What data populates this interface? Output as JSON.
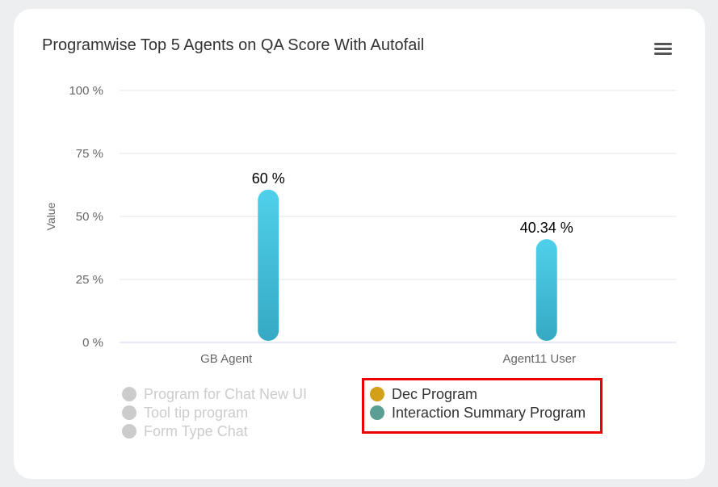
{
  "chart_data": {
    "type": "bar",
    "title": "Programwise Top 5 Agents on QA Score With Autofail",
    "ylabel": "Value",
    "ylim": [
      0,
      100
    ],
    "y_ticks": [
      {
        "value": 0,
        "label": "0 %"
      },
      {
        "value": 25,
        "label": "25 %"
      },
      {
        "value": 50,
        "label": "50 %"
      },
      {
        "value": 75,
        "label": "75 %"
      },
      {
        "value": 100,
        "label": "100 %"
      }
    ],
    "categories": [
      "GB Agent",
      "Agent11 User"
    ],
    "values": [
      60,
      40.34
    ],
    "data_labels": [
      "60 %",
      "40.34 %"
    ],
    "bar_color_top": "#4fd0ea",
    "bar_color_bottom": "#36a9c4",
    "grid": true,
    "legend": [
      {
        "label": "Program for Chat New UI",
        "visible": false,
        "color": "#cccccc"
      },
      {
        "label": "Tool tip program",
        "visible": false,
        "color": "#cccccc"
      },
      {
        "label": "Form Type Chat",
        "visible": false,
        "color": "#cccccc"
      },
      {
        "label": "Dec Program",
        "visible": true,
        "color": "#d4a017"
      },
      {
        "label": "Interaction Summary Program",
        "visible": true,
        "color": "#5a9e94"
      }
    ]
  }
}
